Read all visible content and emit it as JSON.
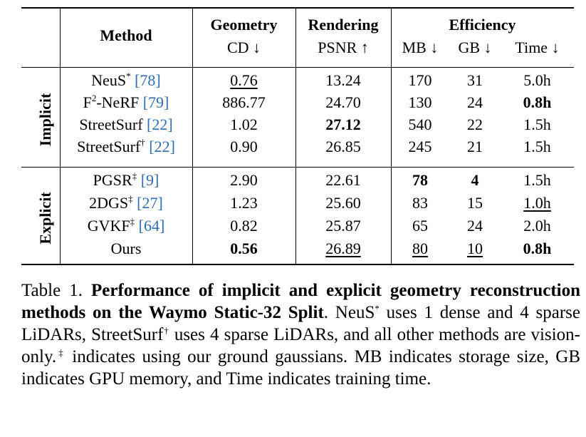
{
  "table": {
    "headers": {
      "method": "Method",
      "geometry": "Geometry",
      "geometry_sub": "CD ↓",
      "rendering": "Rendering",
      "rendering_sub": "PSNR ↑",
      "efficiency": "Efficiency",
      "mb": "MB ↓",
      "gb": "GB ↓",
      "time": "Time ↓"
    },
    "groups": [
      {
        "label": "Implicit",
        "rows": [
          {
            "method": "NeuS",
            "sup": "*",
            "ref": "[78]",
            "cd": "0.76",
            "psnr": "13.24",
            "mb": "170",
            "gb": "31",
            "time": "5.0h"
          },
          {
            "method": "F",
            "sup": "2",
            "method_suffix": "-NeRF",
            "ref": "[79]",
            "cd": "886.77",
            "psnr": "24.70",
            "mb": "130",
            "gb": "24",
            "time": "0.8h"
          },
          {
            "method": "StreetSurf",
            "sup": "",
            "ref": "[22]",
            "cd": "1.02",
            "psnr": "27.12",
            "mb": "540",
            "gb": "22",
            "time": "1.5h"
          },
          {
            "method": "StreetSurf",
            "sup": "†",
            "ref": "[22]",
            "cd": "0.90",
            "psnr": "26.85",
            "mb": "245",
            "gb": "21",
            "time": "1.5h"
          }
        ]
      },
      {
        "label": "Explicit",
        "rows": [
          {
            "method": "PGSR",
            "sup": "‡",
            "ref": "[9]",
            "cd": "2.90",
            "psnr": "22.61",
            "mb": "78",
            "gb": "4",
            "time": "1.5h"
          },
          {
            "method": "2DGS",
            "sup": "‡",
            "ref": "[27]",
            "cd": "1.23",
            "psnr": "25.60",
            "mb": "83",
            "gb": "15",
            "time": "1.0h"
          },
          {
            "method": "GVKF",
            "sup": "‡",
            "ref": "[64]",
            "cd": "0.82",
            "psnr": "25.87",
            "mb": "65",
            "gb": "24",
            "time": "2.0h"
          },
          {
            "method": "Ours",
            "sup": "",
            "ref": "",
            "cd": "0.56",
            "psnr": "26.89",
            "mb": "80",
            "gb": "10",
            "time": "0.8h"
          }
        ]
      }
    ]
  },
  "caption": {
    "prefix": "Table 1.",
    "title_bold": "Performance of implicit and explicit geometry reconstruction methods on the Waymo Static-32 Split",
    "text_1": ". NeuS",
    "sup_1": "*",
    "text_2": " uses 1 dense and 4 sparse LiDARs, StreetSurf",
    "sup_2": "†",
    "text_3": " uses 4 sparse LiDARs, and all other methods are vision-only.",
    "sup_3": "‡",
    "text_4": " indicates using our ground gaussians. MB indicates storage size, GB indicates GPU memory, and Time indicates training time."
  }
}
